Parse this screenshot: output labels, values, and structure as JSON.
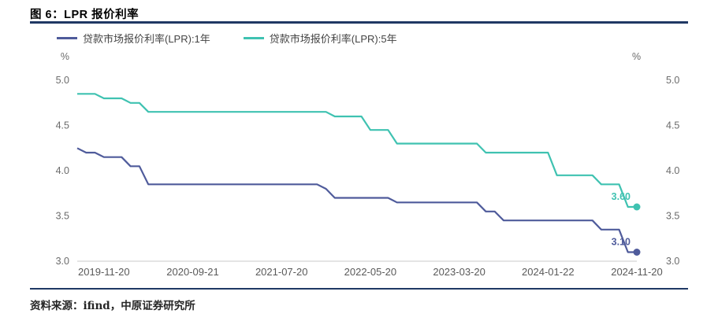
{
  "figure": {
    "title": "图 6：LPR 报价利率",
    "source_prefix": "资料来源：",
    "source_text": "ifind，中原证券研究所"
  },
  "chart_data": {
    "type": "line",
    "step": true,
    "title": "LPR 报价利率",
    "unit": "%",
    "ylim": [
      3.0,
      5.0
    ],
    "yticks": [
      3.0,
      3.5,
      4.0,
      4.5,
      5.0
    ],
    "grid": false,
    "legend_position": "top",
    "x_start": "2019-08",
    "x_end": "2024-11",
    "x_ticks": [
      {
        "month": "2019-11",
        "label": "2019-11-20"
      },
      {
        "month": "2020-09",
        "label": "2020-09-21"
      },
      {
        "month": "2021-07",
        "label": "2021-07-20"
      },
      {
        "month": "2022-05",
        "label": "2022-05-20"
      },
      {
        "month": "2023-03",
        "label": "2023-03-20"
      },
      {
        "month": "2024-01",
        "label": "2024-01-22"
      },
      {
        "month": "2024-11",
        "label": "2024-11-20"
      }
    ],
    "series": [
      {
        "name": "贷款市场报价利率(LPR):1年",
        "color": "#4F5B9B",
        "end_label": "3.10",
        "changes": [
          [
            "2019-08",
            4.25
          ],
          [
            "2019-09",
            4.2
          ],
          [
            "2019-11",
            4.15
          ],
          [
            "2020-02",
            4.05
          ],
          [
            "2020-04",
            3.85
          ],
          [
            "2021-12",
            3.8
          ],
          [
            "2022-01",
            3.7
          ],
          [
            "2022-08",
            3.65
          ],
          [
            "2023-06",
            3.55
          ],
          [
            "2023-08",
            3.45
          ],
          [
            "2024-07",
            3.35
          ],
          [
            "2024-10",
            3.1
          ]
        ]
      },
      {
        "name": "贷款市场报价利率(LPR):5年",
        "color": "#3FC2B1",
        "end_label": "3.60",
        "changes": [
          [
            "2019-08",
            4.85
          ],
          [
            "2019-11",
            4.8
          ],
          [
            "2020-02",
            4.75
          ],
          [
            "2020-04",
            4.65
          ],
          [
            "2022-01",
            4.6
          ],
          [
            "2022-05",
            4.45
          ],
          [
            "2022-08",
            4.3
          ],
          [
            "2023-06",
            4.2
          ],
          [
            "2024-02",
            3.95
          ],
          [
            "2024-07",
            3.85
          ],
          [
            "2024-10",
            3.6
          ]
        ]
      }
    ]
  }
}
